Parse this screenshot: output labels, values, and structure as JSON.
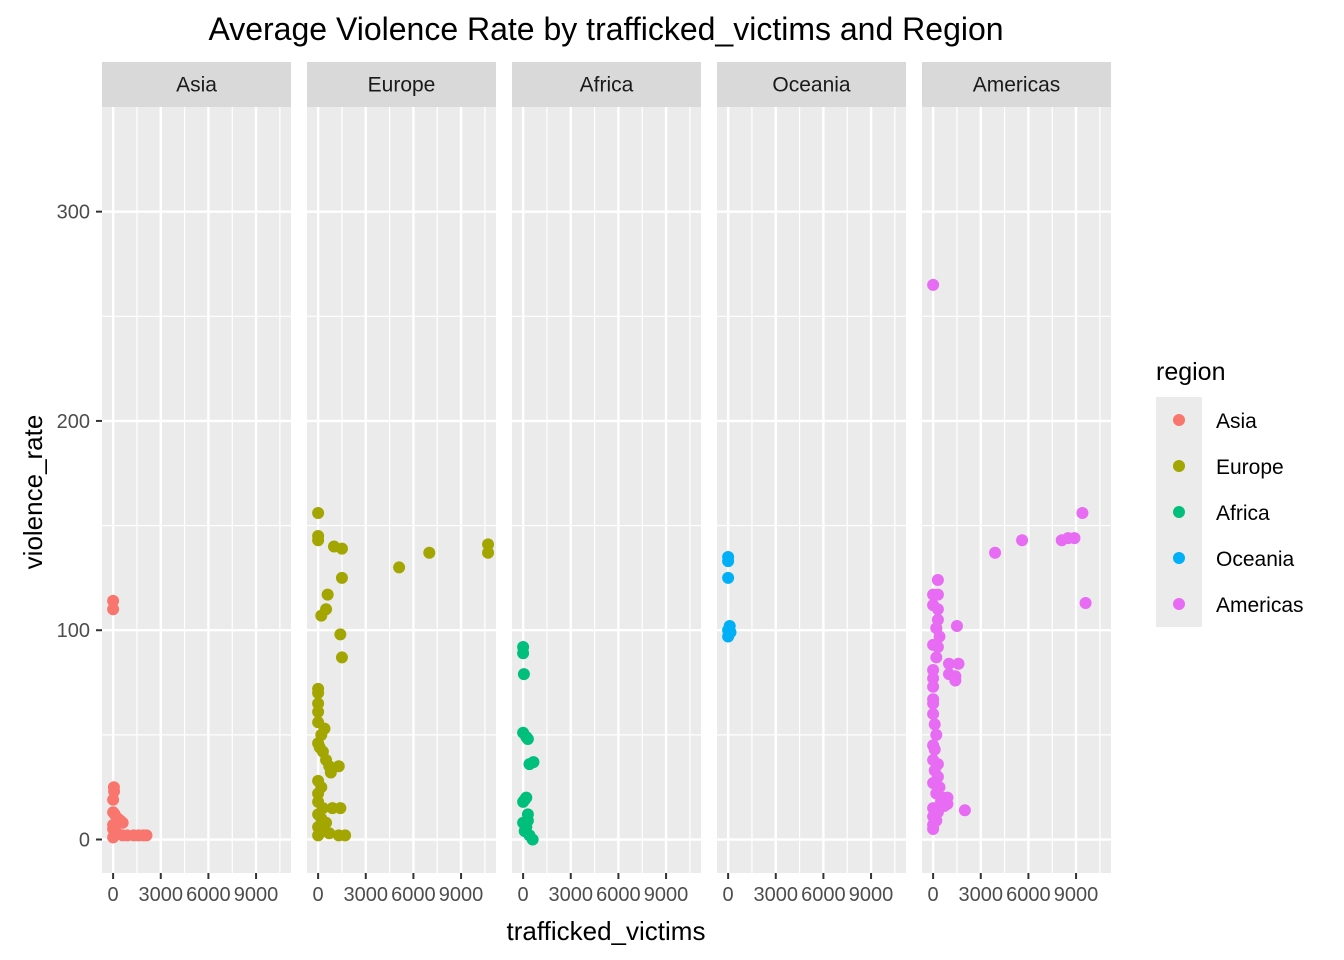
{
  "chart_data": {
    "type": "scatter",
    "title": "Average Violence Rate by trafficked_victims and Region",
    "xlabel": "trafficked_victims",
    "ylabel": "violence_rate",
    "xlim": [
      -700,
      11200
    ],
    "ylim": [
      -16,
      350
    ],
    "x_ticks": [
      0,
      3000,
      6000,
      9000
    ],
    "x_tick_labels": [
      "0",
      "3000",
      "6000",
      "9000"
    ],
    "y_ticks": [
      0,
      100,
      200,
      300
    ],
    "y_tick_labels": [
      "0",
      "100",
      "200",
      "300"
    ],
    "grid": true,
    "legend": {
      "title": "region",
      "position": "right"
    },
    "facets": [
      {
        "name": "Asia",
        "color": "#F8766D",
        "points": [
          [
            0,
            114
          ],
          [
            0,
            110
          ],
          [
            50,
            25
          ],
          [
            60,
            23
          ],
          [
            0,
            19
          ],
          [
            0,
            13
          ],
          [
            100,
            12
          ],
          [
            300,
            10
          ],
          [
            450,
            9
          ],
          [
            600,
            8
          ],
          [
            0,
            7
          ],
          [
            0,
            5
          ],
          [
            80,
            4
          ],
          [
            250,
            3
          ],
          [
            600,
            2
          ],
          [
            900,
            2
          ],
          [
            1300,
            2
          ],
          [
            1600,
            2
          ],
          [
            1900,
            2
          ],
          [
            2100,
            2
          ],
          [
            0,
            1
          ]
        ]
      },
      {
        "name": "Europe",
        "color": "#A3A500",
        "points": [
          [
            0,
            156
          ],
          [
            0,
            145
          ],
          [
            0,
            143
          ],
          [
            1000,
            140
          ],
          [
            1500,
            139
          ],
          [
            7000,
            137
          ],
          [
            10700,
            141
          ],
          [
            10700,
            137
          ],
          [
            5100,
            130
          ],
          [
            1500,
            125
          ],
          [
            600,
            117
          ],
          [
            500,
            110
          ],
          [
            200,
            107
          ],
          [
            1400,
            98
          ],
          [
            1500,
            87
          ],
          [
            0,
            72
          ],
          [
            0,
            70
          ],
          [
            0,
            65
          ],
          [
            0,
            61
          ],
          [
            0,
            56
          ],
          [
            400,
            53
          ],
          [
            200,
            50
          ],
          [
            0,
            46
          ],
          [
            100,
            44
          ],
          [
            300,
            42
          ],
          [
            500,
            38
          ],
          [
            700,
            35
          ],
          [
            1300,
            35
          ],
          [
            800,
            32
          ],
          [
            0,
            28
          ],
          [
            200,
            25
          ],
          [
            0,
            22
          ],
          [
            0,
            18
          ],
          [
            300,
            15
          ],
          [
            900,
            15
          ],
          [
            1400,
            15
          ],
          [
            0,
            12
          ],
          [
            200,
            10
          ],
          [
            500,
            8
          ],
          [
            0,
            6
          ],
          [
            300,
            4
          ],
          [
            700,
            3
          ],
          [
            1300,
            2
          ],
          [
            1700,
            2
          ],
          [
            0,
            2
          ]
        ]
      },
      {
        "name": "Africa",
        "color": "#00BF7D",
        "points": [
          [
            0,
            92
          ],
          [
            0,
            89
          ],
          [
            50,
            79
          ],
          [
            0,
            51
          ],
          [
            200,
            49
          ],
          [
            300,
            48
          ],
          [
            400,
            36
          ],
          [
            650,
            37
          ],
          [
            100,
            19
          ],
          [
            200,
            20
          ],
          [
            0,
            18
          ],
          [
            300,
            12
          ],
          [
            300,
            9
          ],
          [
            0,
            8
          ],
          [
            200,
            6
          ],
          [
            100,
            4
          ],
          [
            400,
            2
          ],
          [
            600,
            0
          ]
        ]
      },
      {
        "name": "Oceania",
        "color": "#00B0F6",
        "points": [
          [
            0,
            135
          ],
          [
            0,
            133
          ],
          [
            0,
            125
          ],
          [
            100,
            102
          ],
          [
            0,
            100
          ],
          [
            150,
            99
          ],
          [
            50,
            98
          ],
          [
            0,
            97
          ]
        ]
      },
      {
        "name": "Americas",
        "color": "#E76BF3",
        "points": [
          [
            0,
            265
          ],
          [
            300,
            124
          ],
          [
            0,
            117
          ],
          [
            300,
            117
          ],
          [
            0,
            112
          ],
          [
            300,
            110
          ],
          [
            300,
            105
          ],
          [
            200,
            101
          ],
          [
            1500,
            102
          ],
          [
            400,
            97
          ],
          [
            0,
            93
          ],
          [
            300,
            92
          ],
          [
            200,
            87
          ],
          [
            1000,
            84
          ],
          [
            1600,
            84
          ],
          [
            1000,
            79
          ],
          [
            1400,
            78
          ],
          [
            1400,
            76
          ],
          [
            0,
            81
          ],
          [
            0,
            77
          ],
          [
            0,
            73
          ],
          [
            0,
            67
          ],
          [
            0,
            65
          ],
          [
            0,
            60
          ],
          [
            100,
            55
          ],
          [
            200,
            50
          ],
          [
            0,
            45
          ],
          [
            100,
            43
          ],
          [
            0,
            38
          ],
          [
            300,
            36
          ],
          [
            100,
            33
          ],
          [
            300,
            30
          ],
          [
            0,
            27
          ],
          [
            400,
            25
          ],
          [
            200,
            22
          ],
          [
            600,
            20
          ],
          [
            900,
            20
          ],
          [
            500,
            18
          ],
          [
            900,
            17
          ],
          [
            700,
            16
          ],
          [
            0,
            15
          ],
          [
            300,
            13
          ],
          [
            0,
            11
          ],
          [
            200,
            9
          ],
          [
            0,
            7
          ],
          [
            0,
            5
          ],
          [
            2000,
            14
          ],
          [
            3900,
            137
          ],
          [
            5600,
            143
          ],
          [
            8100,
            143
          ],
          [
            8500,
            144
          ],
          [
            8900,
            144
          ],
          [
            9400,
            156
          ],
          [
            9600,
            113
          ]
        ]
      }
    ]
  }
}
